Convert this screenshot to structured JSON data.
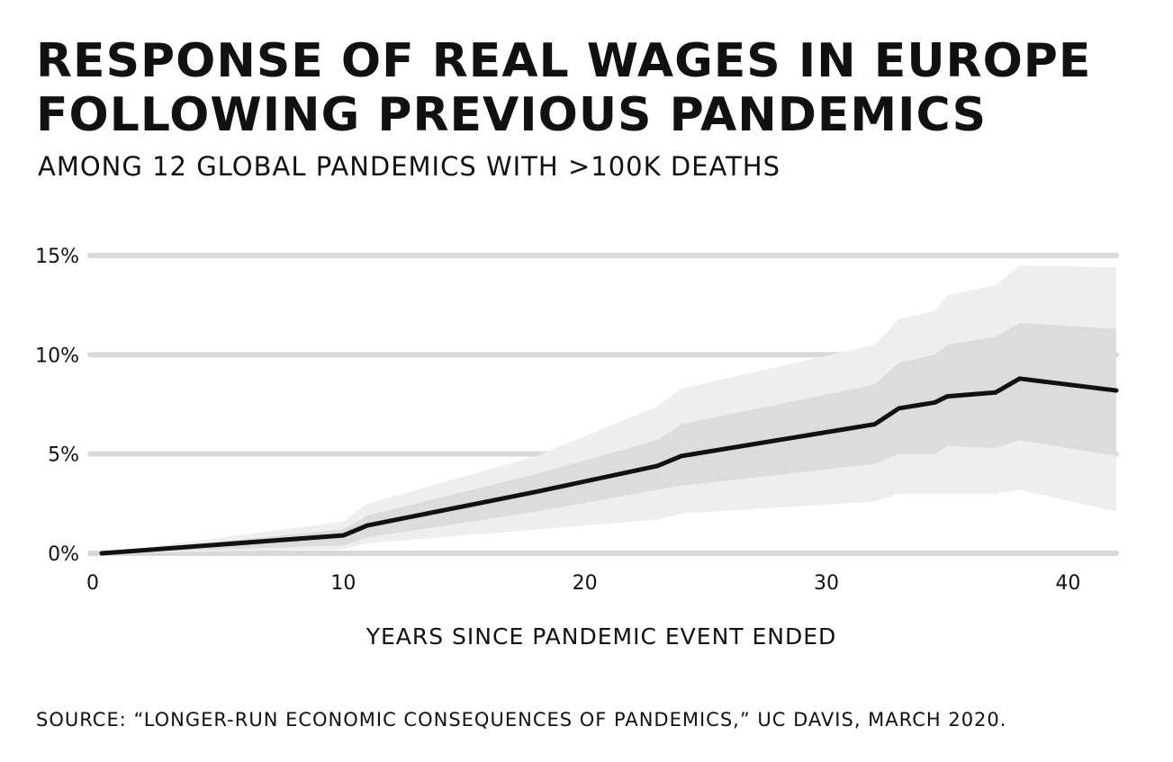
{
  "chart_data": {
    "type": "area",
    "title": "RESPONSE OF REAL WAGES IN EUROPE FOLLOWING PREVIOUS PANDEMICS",
    "subtitle": "AMONG 12 GLOBAL PANDEMICS WITH  >100K DEATHS",
    "xlabel": "YEARS SINCE PANDEMIC EVENT ENDED",
    "ylabel": "",
    "xlim": [
      0,
      42
    ],
    "ylim": [
      0,
      15
    ],
    "x_ticks": [
      0,
      10,
      20,
      30,
      40
    ],
    "x_tick_labels": [
      "0",
      "10",
      "20",
      "30",
      "40"
    ],
    "y_ticks": [
      0,
      5,
      10,
      15
    ],
    "y_tick_labels": [
      "0%",
      "5%",
      "10%",
      "15%"
    ],
    "grid": "horizontal",
    "x": [
      0,
      10,
      11,
      18,
      23,
      24,
      32,
      33,
      34.5,
      35,
      37,
      38,
      42
    ],
    "series": [
      {
        "role": "estimate",
        "values": [
          0,
          0.9,
          1.4,
          3.1,
          4.4,
          4.9,
          6.5,
          7.3,
          7.6,
          7.9,
          8.1,
          8.8,
          8.2
        ]
      },
      {
        "role": "inner_band_upper",
        "values": [
          0,
          1.2,
          1.9,
          4.0,
          5.7,
          6.5,
          8.5,
          9.6,
          10.0,
          10.5,
          10.9,
          11.6,
          11.3
        ]
      },
      {
        "role": "inner_band_lower",
        "values": [
          0,
          0.4,
          0.8,
          2.1,
          3.2,
          3.4,
          4.5,
          5.0,
          5.0,
          5.4,
          5.3,
          5.7,
          4.9
        ]
      },
      {
        "role": "outer_band_upper",
        "values": [
          0,
          1.6,
          2.5,
          4.9,
          7.4,
          8.3,
          10.5,
          11.8,
          12.2,
          13.0,
          13.5,
          14.5,
          14.4
        ]
      },
      {
        "role": "outer_band_lower",
        "values": [
          0,
          0.2,
          0.5,
          1.2,
          1.7,
          2.0,
          2.6,
          3.0,
          3.0,
          3.0,
          3.0,
          3.2,
          2.1
        ]
      }
    ],
    "colors": {
      "line": "#111111",
      "inner_band": "#dcdcdc",
      "outer_band": "#eeeeee",
      "grid": "#d8d8d8"
    }
  },
  "source_note": "SOURCE: “LONGER-RUN ECONOMIC CONSEQUENCES OF PANDEMICS,”  UC DAVIS, MARCH 2020."
}
